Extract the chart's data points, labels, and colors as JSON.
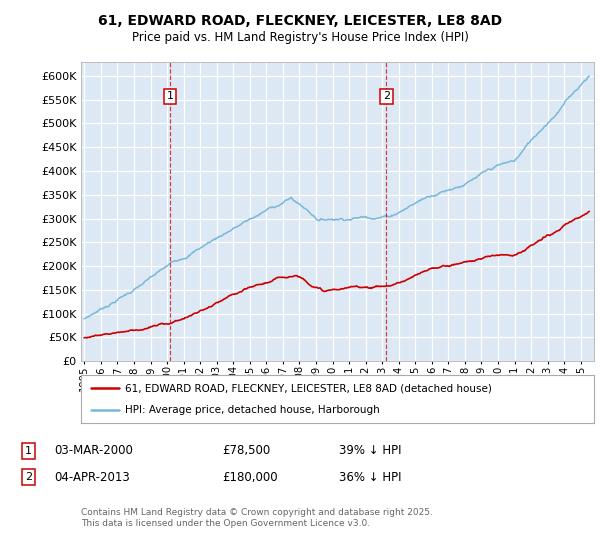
{
  "title_line1": "61, EDWARD ROAD, FLECKNEY, LEICESTER, LE8 8AD",
  "title_line2": "Price paid vs. HM Land Registry's House Price Index (HPI)",
  "hpi_color": "#7ab8d9",
  "price_color": "#cc0000",
  "annotation_box_color": "#cc0000",
  "sale1_date": 2000.17,
  "sale1_price": 78500,
  "sale2_date": 2013.25,
  "sale2_price": 180000,
  "legend_line1": "61, EDWARD ROAD, FLECKNEY, LEICESTER, LE8 8AD (detached house)",
  "legend_line2": "HPI: Average price, detached house, Harborough",
  "ylim_min": 0,
  "ylim_max": 630000,
  "xlim_min": 1994.8,
  "xlim_max": 2025.8,
  "plot_bg_color": "#dce9f5",
  "fig_bg_color": "#ffffff"
}
